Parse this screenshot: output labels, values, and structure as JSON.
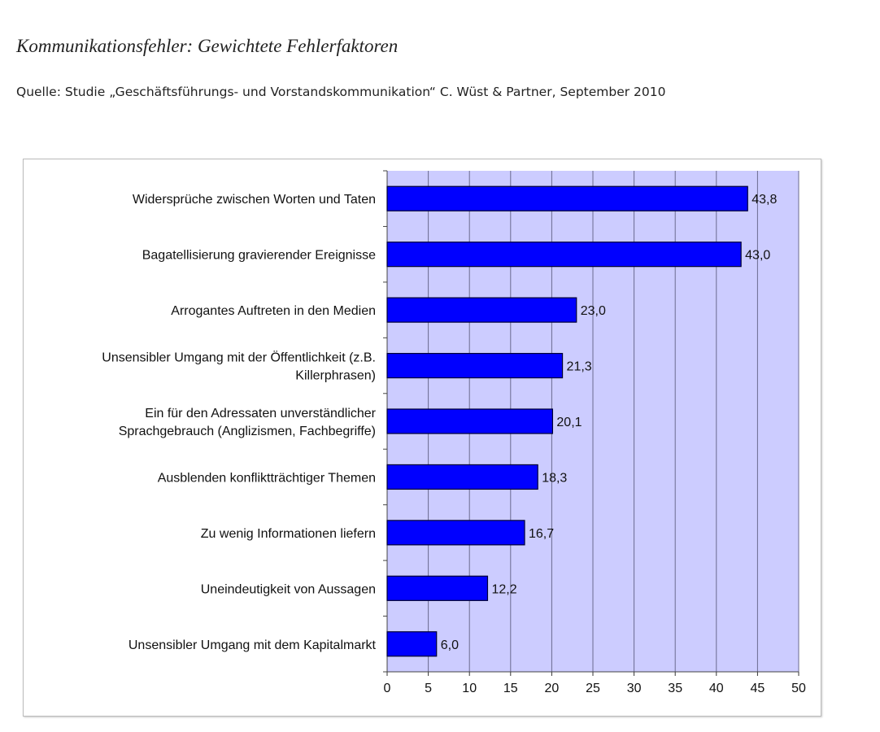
{
  "chart_data": {
    "type": "bar",
    "orientation": "horizontal",
    "title": "Kommunikationsfehler: Gewichtete Fehlerfaktoren",
    "subtitle": "Quelle: Studie „Geschäftsführungs- und Vorstandskommunikation“ C. Wüst & Partner, September 2010",
    "categories": [
      [
        "Widersprüche zwischen Worten und Taten"
      ],
      [
        "Bagatellisierung gravierender Ereignisse"
      ],
      [
        "Arrogantes Auftreten in den Medien"
      ],
      [
        "Unsensibler Umgang mit der Öffentlichkeit (z.B.",
        "Killerphrasen)"
      ],
      [
        "Ein für den Adressaten unverständlicher",
        "Sprachgebrauch (Anglizismen, Fachbegriffe)"
      ],
      [
        "Ausblenden konfliktträchtiger Themen"
      ],
      [
        "Zu wenig Informationen liefern"
      ],
      [
        "Uneindeutigkeit von Aussagen"
      ],
      [
        "Unsensibler Umgang mit dem Kapitalmarkt"
      ]
    ],
    "values": [
      43.8,
      43.0,
      23.0,
      21.3,
      20.1,
      18.3,
      16.7,
      12.2,
      6.0
    ],
    "value_labels": [
      "43,8",
      "43,0",
      "23,0",
      "21,3",
      "20,1",
      "18,3",
      "16,7",
      "12,2",
      "6,0"
    ],
    "xlim": [
      0,
      50
    ],
    "xticks": [
      0,
      5,
      10,
      15,
      20,
      25,
      30,
      35,
      40,
      45,
      50
    ],
    "xlabel": "",
    "ylabel": "",
    "grid": true,
    "colors": {
      "bar": "#0000ff",
      "bar_edge": "#000033",
      "plot_bg": "#ccccff",
      "grid": "#6b6b8f"
    }
  }
}
